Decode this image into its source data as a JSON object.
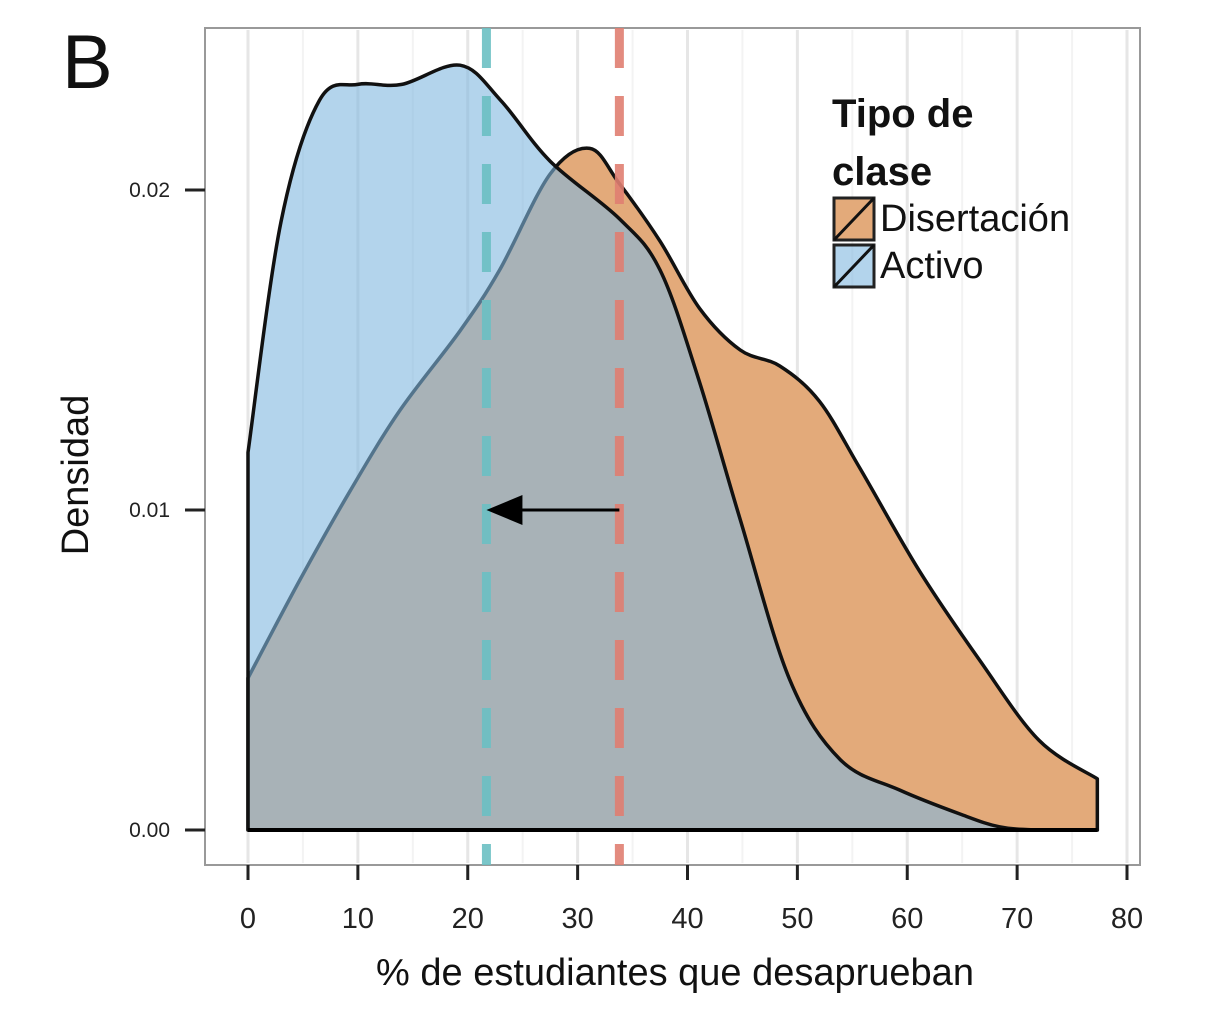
{
  "chart_data": {
    "type": "area",
    "panel_label": "B",
    "xlabel": "% de estudiantes que desaprueban",
    "ylabel": "Densidad",
    "xlim": [
      0,
      80
    ],
    "ylim": [
      0,
      0.0245
    ],
    "x_ticks": [
      "0",
      "10",
      "20",
      "30",
      "40",
      "50",
      "60",
      "70",
      "80"
    ],
    "y_ticks": [
      "0.00",
      "0.01",
      "0.02"
    ],
    "grid": "vertical",
    "legend": {
      "title": "Tipo de clase",
      "placement": "top-right",
      "entries": [
        "Disertación",
        "Activo"
      ]
    },
    "series": [
      {
        "name": "Disertación",
        "color": "#e3aa7a",
        "x": [
          0,
          4.7,
          9.3,
          13.8,
          19.3,
          22.9,
          27.5,
          31.1,
          33.8,
          37.5,
          41.1,
          44.8,
          48.4,
          52,
          55.7,
          61.1,
          66.6,
          72,
          77.3
        ],
        "y": [
          0.00475,
          0.0078,
          0.0106,
          0.0131,
          0.0156,
          0.0175,
          0.0205,
          0.0213,
          0.0202,
          0.0184,
          0.0163,
          0.015,
          0.0145,
          0.0134,
          0.0113,
          0.0081,
          0.0053,
          0.0028,
          0.0016
        ],
        "mean": 33.8
      },
      {
        "name": "Activo",
        "color": "#80b8e0",
        "x": [
          0,
          3,
          6.5,
          10,
          14,
          19.3,
          23,
          27.5,
          33.8,
          37.5,
          41,
          44.8,
          49.3,
          53.9,
          59.3,
          64.8,
          68.4,
          72,
          77.3
        ],
        "y": [
          0.0118,
          0.019,
          0.0228,
          0.0233,
          0.0233,
          0.0239,
          0.0228,
          0.0209,
          0.0191,
          0.0175,
          0.0141,
          0.0097,
          0.0047,
          0.0022,
          0.00125,
          0.0005,
          0.0001,
          0.0,
          0.0
        ],
        "mean": 21.7
      }
    ],
    "annotations": [
      {
        "type": "arrow",
        "from_x": 33.8,
        "to_x": 21.7,
        "y": 0.01
      }
    ]
  }
}
